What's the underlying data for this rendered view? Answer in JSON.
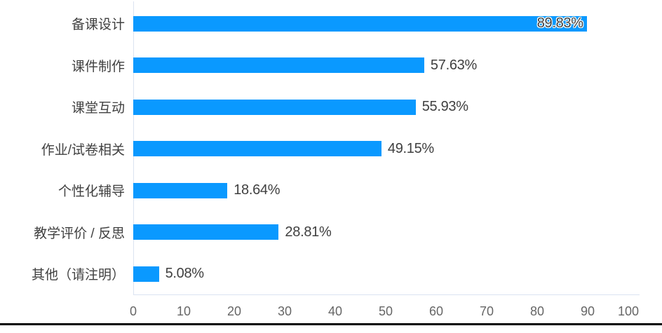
{
  "chart_data": {
    "type": "bar",
    "orientation": "horizontal",
    "title": "",
    "xlabel": "",
    "ylabel": "",
    "categories": [
      "备课设计",
      "课件制作",
      "课堂互动",
      "作业/试卷相关",
      "个性化辅导",
      "教学评价 / 反思",
      "其他（请注明）"
    ],
    "values": [
      89.83,
      57.63,
      55.93,
      49.15,
      18.64,
      28.81,
      5.08
    ],
    "value_labels": [
      "89.83%",
      "57.63%",
      "55.93%",
      "49.15%",
      "18.64%",
      "28.81%",
      "5.08%"
    ],
    "label_inside": [
      true,
      false,
      false,
      false,
      false,
      false,
      false
    ],
    "xlim": [
      0,
      100
    ],
    "x_ticks": [
      "0",
      "10",
      "20",
      "30",
      "40",
      "50",
      "60",
      "70",
      "80",
      "90",
      "100"
    ],
    "grid": false,
    "legend_position": "none"
  },
  "colors": {
    "bar": "#0A99FF",
    "value_text": "#404040",
    "category_text": "#404040",
    "tick_text": "#666666",
    "axis_line": "#dbe3f1",
    "divider": "#000000",
    "background": "#ffffff"
  }
}
